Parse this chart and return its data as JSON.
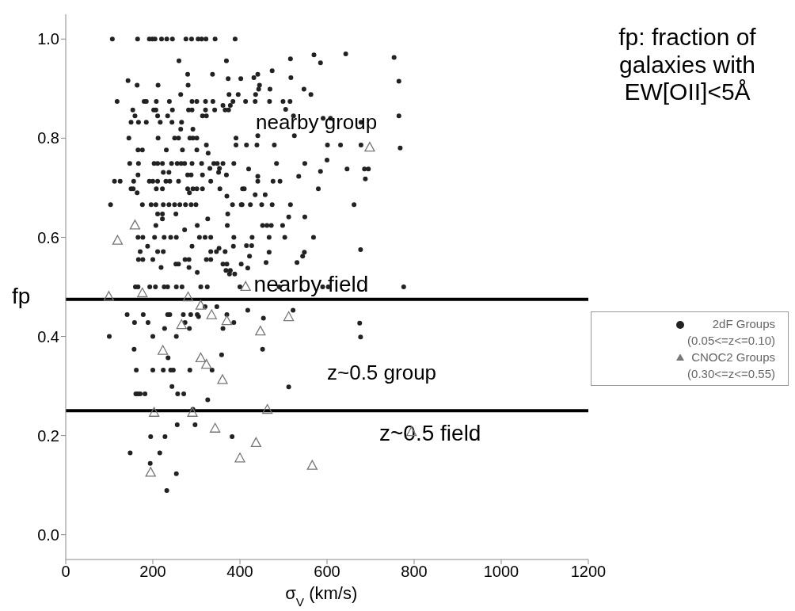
{
  "chart_data": {
    "type": "scatter",
    "xlabel": "σ$_{V}$ (km/s)",
    "ylabel": "fp",
    "annotations": [
      "fp: fraction of galaxies with EW[OII]<5Å",
      "nearby group",
      "z~0.5 group"
    ],
    "xlim": [
      0,
      1200
    ],
    "ylim": [
      -0.05,
      1.05
    ],
    "xticks": [
      0,
      200,
      400,
      600,
      800,
      1000,
      1200
    ],
    "yticks": [
      {
        "value": 0,
        "label": "0.0"
      },
      0.2,
      0.4,
      0.6,
      0.8,
      {
        "value": 1,
        "label": "1.0"
      }
    ],
    "ref_lines": [
      {
        "axis": "y",
        "value": 0.475,
        "label": "nearby field",
        "color": "#000000"
      },
      {
        "axis": "y",
        "value": 0.25,
        "label": "z~0.5 field",
        "color": "#000000"
      }
    ],
    "legend": "right",
    "series": [
      {
        "name": "2dF Groups (0.05<=z<=0.10)",
        "color": "#222222",
        "marker": "circle",
        "x": [
          107,
          165,
          192,
          199,
          205,
          220,
          232,
          245,
          276,
          289,
          304,
          312,
          322,
          343,
          389,
          260,
          369,
          280,
          337,
          373,
          402,
          143,
          164,
          212,
          281,
          264,
          375,
          396,
          118,
          180,
          185,
          208,
          238,
          290,
          301,
          321,
          338,
          384,
          361,
          378,
          154,
          202,
          207,
          245,
          282,
          290,
          321,
          342,
          366,
          374,
          159,
          211,
          234,
          314,
          323,
          150,
          167,
          185,
          217,
          244,
          266,
          264,
          292,
          145,
          212,
          250,
          259,
          285,
          292,
          301,
          391,
          323,
          391,
          166,
          176,
          231,
          268,
          301,
          327,
          147,
          167,
          203,
          211,
          222,
          243,
          256,
          265,
          273,
          290,
          312,
          340,
          348,
          361,
          386,
          331,
          353,
          224,
          237,
          351,
          166,
          280,
          288,
          314,
          369,
          112,
          125,
          156,
          192,
          200,
          211,
          230,
          239,
          259,
          333,
          150,
          155,
          208,
          222,
          280,
          292,
          301,
          314,
          354,
          406,
          164,
          284,
          370,
          103,
          176,
          196,
          207,
          224,
          237,
          250,
          262,
          275,
          288,
          299,
          383,
          403,
          211,
          222,
          253,
          372,
          222,
          326,
          207,
          302,
          371,
          273,
          166,
          177,
          204,
          226,
          241,
          254,
          307,
          320,
          333,
          386,
          188,
          290,
          385,
          171,
          211,
          224,
          333,
          346,
          366,
          352,
          167,
          177,
          200,
          274,
          283,
          323,
          333,
          253,
          259,
          361,
          370,
          403,
          219,
          283,
          368,
          378,
          302,
          376,
          388,
          160,
          166,
          193,
          206,
          226,
          234,
          254,
          267,
          310,
          325,
          400,
          320,
          347,
          141,
          178,
          234,
          239,
          270,
          287,
          302,
          370,
          305,
          158,
          189,
          274,
          386,
          227,
          284,
          361,
          100,
          200,
          254,
          157,
          358,
          235,
          162,
          200,
          224,
          241,
          247,
          285,
          336,
          244,
          161,
          166,
          171,
          182,
          257,
          271,
          326,
          292,
          256,
          297,
          195,
          228,
          382,
          148,
          216,
          194,
          254,
          232,
          570,
          643,
          585,
          754,
          516,
          474,
          432,
          441,
          517,
          765,
          443,
          469,
          547,
          445,
          436,
          563,
          413,
          435,
          468,
          499,
          515,
          505,
          523,
          765,
          591,
          608,
          678,
          441,
          525,
          415,
          439,
          479,
          601,
          631,
          678,
          768,
          600,
          484,
          549,
          420,
          646,
          686,
          695,
          585,
          441,
          535,
          688,
          441,
          476,
          492,
          410,
          580,
          435,
          458,
          405,
          424,
          450,
          474,
          516,
          662,
          512,
          549,
          452,
          462,
          472,
          498,
          428,
          467,
          503,
          569,
          415,
          427,
          467,
          548,
          677,
          422,
          544,
          460,
          531,
          418,
          490,
          590,
          603,
          776,
          418,
          522,
          454,
          675,
          677,
          452,
          512
        ],
        "values": [
          1.0,
          1.0,
          1.0,
          1.0,
          1.0,
          1.0,
          1.0,
          1.0,
          1.0,
          1.0,
          1.0,
          1.0,
          1.0,
          1.0,
          1.0,
          0.956,
          0.956,
          0.929,
          0.929,
          0.92,
          0.92,
          0.916,
          0.907,
          0.907,
          0.907,
          0.888,
          0.888,
          0.888,
          0.874,
          0.874,
          0.874,
          0.874,
          0.874,
          0.874,
          0.874,
          0.874,
          0.874,
          0.874,
          0.866,
          0.866,
          0.857,
          0.857,
          0.857,
          0.857,
          0.857,
          0.857,
          0.857,
          0.857,
          0.857,
          0.857,
          0.845,
          0.845,
          0.845,
          0.845,
          0.845,
          0.832,
          0.832,
          0.832,
          0.832,
          0.832,
          0.832,
          0.818,
          0.818,
          0.8,
          0.8,
          0.8,
          0.8,
          0.8,
          0.8,
          0.8,
          0.8,
          0.786,
          0.786,
          0.776,
          0.776,
          0.776,
          0.776,
          0.776,
          0.77,
          0.749,
          0.749,
          0.749,
          0.749,
          0.749,
          0.749,
          0.749,
          0.749,
          0.749,
          0.749,
          0.749,
          0.749,
          0.749,
          0.749,
          0.749,
          0.739,
          0.739,
          0.731,
          0.731,
          0.731,
          0.726,
          0.726,
          0.726,
          0.726,
          0.726,
          0.713,
          0.713,
          0.713,
          0.713,
          0.713,
          0.713,
          0.713,
          0.713,
          0.713,
          0.713,
          0.698,
          0.698,
          0.698,
          0.698,
          0.698,
          0.698,
          0.698,
          0.698,
          0.698,
          0.698,
          0.69,
          0.69,
          0.683,
          0.666,
          0.666,
          0.666,
          0.666,
          0.666,
          0.666,
          0.666,
          0.666,
          0.666,
          0.666,
          0.666,
          0.666,
          0.666,
          0.647,
          0.647,
          0.647,
          0.647,
          0.637,
          0.637,
          0.624,
          0.624,
          0.624,
          0.615,
          0.6,
          0.6,
          0.6,
          0.6,
          0.6,
          0.6,
          0.6,
          0.6,
          0.6,
          0.6,
          0.582,
          0.582,
          0.582,
          0.571,
          0.571,
          0.571,
          0.571,
          0.571,
          0.571,
          0.578,
          0.555,
          0.555,
          0.555,
          0.555,
          0.555,
          0.555,
          0.555,
          0.546,
          0.546,
          0.546,
          0.546,
          0.546,
          0.539,
          0.539,
          0.533,
          0.533,
          0.529,
          0.526,
          0.526,
          0.5,
          0.5,
          0.5,
          0.5,
          0.5,
          0.5,
          0.5,
          0.5,
          0.5,
          0.5,
          0.5,
          0.46,
          0.46,
          0.444,
          0.444,
          0.444,
          0.444,
          0.444,
          0.444,
          0.444,
          0.444,
          0.44,
          0.428,
          0.428,
          0.428,
          0.428,
          0.416,
          0.416,
          0.416,
          0.4,
          0.4,
          0.4,
          0.374,
          0.363,
          0.357,
          0.332,
          0.332,
          0.332,
          0.332,
          0.332,
          0.332,
          0.332,
          0.299,
          0.284,
          0.284,
          0.284,
          0.284,
          0.284,
          0.284,
          0.272,
          0.253,
          0.222,
          0.222,
          0.198,
          0.198,
          0.198,
          0.165,
          0.165,
          0.144,
          0.123,
          0.089,
          0.968,
          0.97,
          0.952,
          0.963,
          0.96,
          0.936,
          0.922,
          0.929,
          0.922,
          0.915,
          0.899,
          0.899,
          0.899,
          0.907,
          0.888,
          0.888,
          0.874,
          0.874,
          0.874,
          0.874,
          0.874,
          0.858,
          0.845,
          0.845,
          0.84,
          0.84,
          0.832,
          0.805,
          0.805,
          0.786,
          0.786,
          0.786,
          0.786,
          0.786,
          0.786,
          0.78,
          0.756,
          0.749,
          0.749,
          0.738,
          0.738,
          0.738,
          0.738,
          0.733,
          0.723,
          0.723,
          0.718,
          0.713,
          0.713,
          0.713,
          0.698,
          0.698,
          0.686,
          0.686,
          0.666,
          0.666,
          0.666,
          0.666,
          0.666,
          0.666,
          0.641,
          0.641,
          0.624,
          0.624,
          0.624,
          0.624,
          0.6,
          0.6,
          0.6,
          0.6,
          0.583,
          0.583,
          0.57,
          0.57,
          0.575,
          0.562,
          0.562,
          0.549,
          0.549,
          0.538,
          0.5,
          0.5,
          0.5,
          0.5,
          0.453,
          0.453,
          0.437,
          0.427,
          0.399,
          0.374,
          0.298
        ]
      },
      {
        "name": "CNOC2 Groups (0.30<=z<=0.55)",
        "color": "#777777",
        "marker": "triangle",
        "x": [
          159,
          119,
          176,
          99,
          281,
          310,
          335,
          266,
          370,
          223,
          310,
          323,
          360,
          203,
          291,
          343,
          400,
          195,
          566,
          698,
          413,
          512,
          447,
          463,
          794,
          437
        ],
        "values": [
          0.625,
          0.594,
          0.488,
          0.481,
          0.48,
          0.463,
          0.444,
          0.424,
          0.432,
          0.372,
          0.357,
          0.344,
          0.313,
          0.247,
          0.247,
          0.215,
          0.155,
          0.126,
          0.14,
          0.782,
          0.501,
          0.44,
          0.411,
          0.253,
          0.208,
          0.186
        ]
      }
    ]
  }
}
